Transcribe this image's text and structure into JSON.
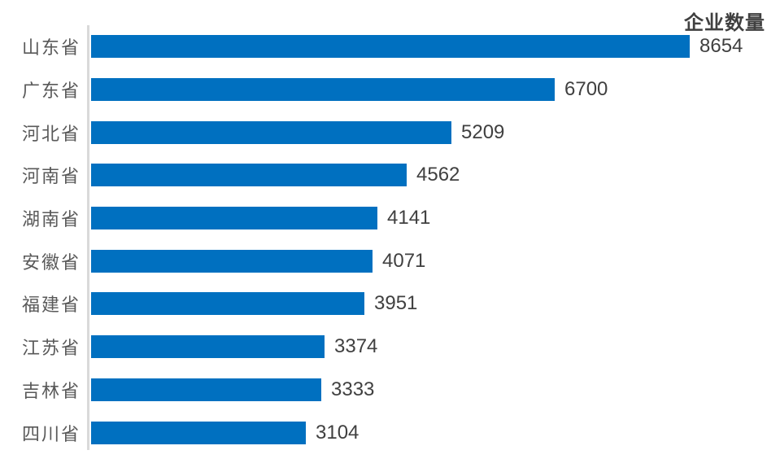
{
  "chart_data": {
    "type": "bar",
    "orientation": "horizontal",
    "title": "企业数量",
    "categories": [
      "山东省",
      "广东省",
      "河北省",
      "河南省",
      "湖南省",
      "安徽省",
      "福建省",
      "江苏省",
      "吉林省",
      "四川省"
    ],
    "values": [
      8654,
      6700,
      5209,
      4562,
      4141,
      4071,
      3951,
      3374,
      3333,
      3104
    ],
    "xlim": [
      0,
      8654
    ],
    "data_labels": true,
    "grid": false,
    "legend": false,
    "colors": {
      "bar": "#0070C0",
      "axis_line": "#D9D9D9",
      "category_label": "#595959",
      "value_label": "#404040",
      "title": "#404040"
    }
  }
}
